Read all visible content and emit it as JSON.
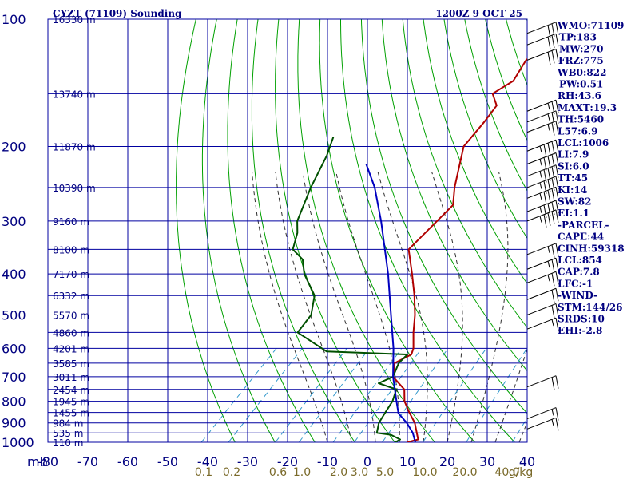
{
  "header": {
    "station": "CYZT (71109) Sounding",
    "time": "1200Z  9 OCT 25"
  },
  "colors": {
    "grid": "#0000a0",
    "isotherm": "#0000a0",
    "dry_adiabat": "#00a000",
    "moist_adiabat": "#303030",
    "mixing_ratio": "#3399cc",
    "temperature": "#b00000",
    "dewpoint": "#005000",
    "parcel": "#0000c0",
    "wind_barb": "#000000"
  },
  "chart_data": {
    "type": "line",
    "title": "CYZT (71109) Sounding",
    "xlabel": "",
    "ylabel": "mb",
    "x_axis": "temperature (C), skewed",
    "y_axis": "pressure (mb), log scale",
    "xlim": [
      -80,
      40
    ],
    "ylim": [
      1000,
      100
    ],
    "pressure_ticks": [
      100,
      200,
      300,
      400,
      500,
      600,
      700,
      800,
      900,
      1000
    ],
    "temperature_ticks": [
      -80,
      -70,
      -60,
      -50,
      -40,
      -30,
      -20,
      -10,
      0,
      10,
      20,
      30,
      40
    ],
    "temperature_tick_labels": [
      "-80",
      "-70",
      "-60",
      "-50",
      "-40",
      "-30",
      "-20",
      "-10",
      "0",
      "10",
      "20",
      "30",
      "40"
    ],
    "height_labels": [
      {
        "p": 100,
        "label": "16330 m"
      },
      {
        "p": 150,
        "label": "13740 m"
      },
      {
        "p": 200,
        "label": "11870 m"
      },
      {
        "p": 250,
        "label": "10390 m"
      },
      {
        "p": 300,
        "label": "9160 m"
      },
      {
        "p": 350,
        "label": "8100 m"
      },
      {
        "p": 400,
        "label": "7170 m"
      },
      {
        "p": 450,
        "label": "6332 m"
      },
      {
        "p": 500,
        "label": "5570 m"
      },
      {
        "p": 550,
        "label": "4860 m"
      },
      {
        "p": 600,
        "label": "4201 m"
      },
      {
        "p": 650,
        "label": "3585 m"
      },
      {
        "p": 700,
        "label": "3011 m"
      },
      {
        "p": 750,
        "label": "2454 m"
      },
      {
        "p": 800,
        "label": "1945 m"
      },
      {
        "p": 850,
        "label": "1455 m"
      },
      {
        "p": 900,
        "label": "984 m"
      },
      {
        "p": 950,
        "label": "535 m"
      },
      {
        "p": 1000,
        "label": "110 m"
      }
    ],
    "mixing_ratio_labels": [
      "0.1",
      "0.2",
      "0.6",
      "1.0",
      "2.0",
      "3.0",
      "5.0",
      "10.0",
      "20.0",
      "40.0",
      "g/kg"
    ],
    "mixing_ratio_values": [
      0.1,
      0.2,
      0.6,
      1.0,
      2.0,
      3.0,
      5.0,
      10.0,
      20.0,
      40.0
    ],
    "series": [
      {
        "kind": "temperature",
        "points": [
          [
            1000,
            10
          ],
          [
            985,
            12
          ],
          [
            950,
            10
          ],
          [
            900,
            7
          ],
          [
            850,
            3
          ],
          [
            800,
            -1
          ],
          [
            750,
            -4
          ],
          [
            700,
            -10
          ],
          [
            650,
            -13
          ],
          [
            620,
            -11
          ],
          [
            600,
            -12
          ],
          [
            550,
            -16
          ],
          [
            500,
            -20
          ],
          [
            450,
            -25
          ],
          [
            400,
            -31
          ],
          [
            350,
            -38
          ],
          [
            300,
            -38
          ],
          [
            275,
            -38
          ],
          [
            250,
            -42
          ],
          [
            200,
            -50
          ],
          [
            175,
            -51
          ],
          [
            160,
            -52
          ],
          [
            150,
            -56
          ],
          [
            140,
            -54
          ],
          [
            125,
            -56
          ],
          [
            110,
            -55
          ],
          [
            100,
            -56
          ]
        ]
      },
      {
        "kind": "dewpoint",
        "points": [
          [
            1000,
            7
          ],
          [
            985,
            7.5
          ],
          [
            960,
            4
          ],
          [
            950,
            0
          ],
          [
            900,
            -2
          ],
          [
            850,
            -3
          ],
          [
            800,
            -4
          ],
          [
            750,
            -6
          ],
          [
            725,
            -12
          ],
          [
            700,
            -10
          ],
          [
            650,
            -12
          ],
          [
            620,
            -12
          ],
          [
            610,
            -33
          ],
          [
            550,
            -45
          ],
          [
            500,
            -46
          ],
          [
            450,
            -50
          ],
          [
            400,
            -58
          ],
          [
            370,
            -62
          ],
          [
            350,
            -67
          ],
          [
            320,
            -70
          ],
          [
            300,
            -73
          ],
          [
            250,
            -78
          ],
          [
            210,
            -82
          ],
          [
            190,
            -85
          ]
        ]
      },
      {
        "kind": "parcel",
        "points": [
          [
            1000,
            12
          ],
          [
            950,
            9
          ],
          [
            900,
            5
          ],
          [
            854,
            0.5
          ],
          [
            800,
            -3
          ],
          [
            700,
            -10
          ],
          [
            600,
            -17
          ],
          [
            500,
            -26
          ],
          [
            400,
            -37
          ],
          [
            300,
            -52
          ],
          [
            250,
            -62
          ],
          [
            220,
            -70
          ]
        ]
      }
    ],
    "wind_barbs": [
      {
        "p": 108,
        "speed": 30
      },
      {
        "p": 115,
        "speed": 30
      },
      {
        "p": 125,
        "speed": 30
      },
      {
        "p": 165,
        "speed": 25
      },
      {
        "p": 175,
        "speed": 25
      },
      {
        "p": 185,
        "speed": 25
      },
      {
        "p": 205,
        "speed": 45
      },
      {
        "p": 220,
        "speed": 45
      },
      {
        "p": 235,
        "speed": 45
      },
      {
        "p": 250,
        "speed": 45
      },
      {
        "p": 265,
        "speed": 45
      },
      {
        "p": 285,
        "speed": 45
      },
      {
        "p": 300,
        "speed": 45
      },
      {
        "p": 360,
        "speed": 25
      },
      {
        "p": 390,
        "speed": 25
      },
      {
        "p": 420,
        "speed": 25
      },
      {
        "p": 460,
        "speed": 20
      },
      {
        "p": 500,
        "speed": 20
      },
      {
        "p": 540,
        "speed": 15
      },
      {
        "p": 740,
        "speed": 20
      },
      {
        "p": 880,
        "speed": 15
      },
      {
        "p": 930,
        "speed": 15
      }
    ]
  },
  "indices": [
    "WMO:71109",
    "TP:183",
    "MW:270",
    "FRZ:775",
    "WB0:822",
    "PW:0.51",
    "RH:43.6",
    "MAXT:19.3",
    "TH:5460",
    "L57:6.9",
    "LCL:1006",
    "LI:7.9",
    "SI:6.0",
    "TT:45",
    "KI:14",
    "SW:82",
    "EI:1.1",
    "-PARCEL-",
    "CAPE:44",
    "CINH:59318",
    "LCL:854",
    "CAP:7.8",
    "LFC:-1",
    "-WIND-",
    "STM:144/26",
    "SRDS:10",
    "EHI:-2.8"
  ]
}
